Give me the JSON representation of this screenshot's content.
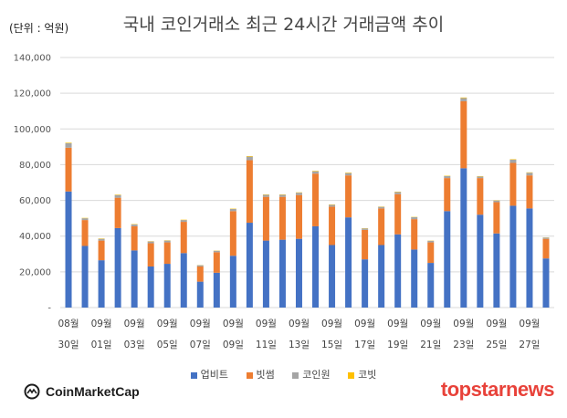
{
  "unit_label": "(단위 : 억원)",
  "colors": {
    "upbit": "#4472c4",
    "bithumb": "#ed7d31",
    "coinone": "#a5a5a5",
    "korbit": "#ffc000"
  },
  "footer": {
    "left_brand": "CoinMarketCap",
    "right_brand": "topstarnews"
  },
  "chart_data": {
    "type": "bar",
    "stacked": true,
    "title": "국내 코인거래소 최근 24시간 거래금액 추이",
    "y_tick_labels": [
      "-",
      "20,000",
      "40,000",
      "60,000",
      "80,000",
      "100,000",
      "120,000",
      "140,000"
    ],
    "ylim": [
      0,
      140000
    ],
    "grid": true,
    "legend_position": "bottom",
    "x_tick_labels": [
      {
        "top": "08월",
        "bottom": "30일"
      },
      {
        "top": "09월",
        "bottom": "01일"
      },
      {
        "top": "09월",
        "bottom": "03일"
      },
      {
        "top": "09월",
        "bottom": "05일"
      },
      {
        "top": "09월",
        "bottom": "07일"
      },
      {
        "top": "09월",
        "bottom": "09일"
      },
      {
        "top": "09월",
        "bottom": "11일"
      },
      {
        "top": "09월",
        "bottom": "13일"
      },
      {
        "top": "09월",
        "bottom": "15일"
      },
      {
        "top": "09월",
        "bottom": "17일"
      },
      {
        "top": "09월",
        "bottom": "19일"
      },
      {
        "top": "09월",
        "bottom": "21일"
      },
      {
        "top": "09월",
        "bottom": "23일"
      },
      {
        "top": "09월",
        "bottom": "25일"
      },
      {
        "top": "09월",
        "bottom": "27일"
      }
    ],
    "series": [
      {
        "name": "업비트",
        "values": [
          65000,
          34500,
          26500,
          44500,
          32000,
          23000,
          24500,
          30500,
          14500,
          19500,
          29000,
          47500,
          37500,
          38000,
          38500,
          45500,
          35000,
          50500,
          27000,
          35000,
          41000,
          32500,
          25000,
          54000,
          78000,
          52000,
          41500,
          57000,
          55500,
          27500
        ]
      },
      {
        "name": "빗썸",
        "values": [
          24500,
          14500,
          11000,
          17000,
          13500,
          13000,
          12000,
          17500,
          8500,
          11500,
          25000,
          35000,
          24500,
          24000,
          24500,
          29500,
          21500,
          23500,
          16500,
          20500,
          22500,
          17000,
          11500,
          18500,
          37500,
          20500,
          17500,
          24000,
          18500,
          11000
        ]
      },
      {
        "name": "코인원",
        "values": [
          2500,
          1000,
          1000,
          1500,
          1000,
          1000,
          1000,
          1000,
          700,
          800,
          1200,
          2000,
          1100,
          1100,
          1300,
          1300,
          1000,
          1300,
          800,
          900,
          1200,
          1100,
          900,
          1100,
          1800,
          900,
          900,
          1800,
          1500,
          700
        ]
      },
      {
        "name": "코빗",
        "values": [
          300,
          200,
          200,
          250,
          200,
          150,
          150,
          200,
          100,
          120,
          200,
          300,
          200,
          200,
          200,
          250,
          200,
          250,
          150,
          150,
          200,
          150,
          120,
          200,
          300,
          200,
          150,
          250,
          200,
          100
        ]
      }
    ]
  }
}
